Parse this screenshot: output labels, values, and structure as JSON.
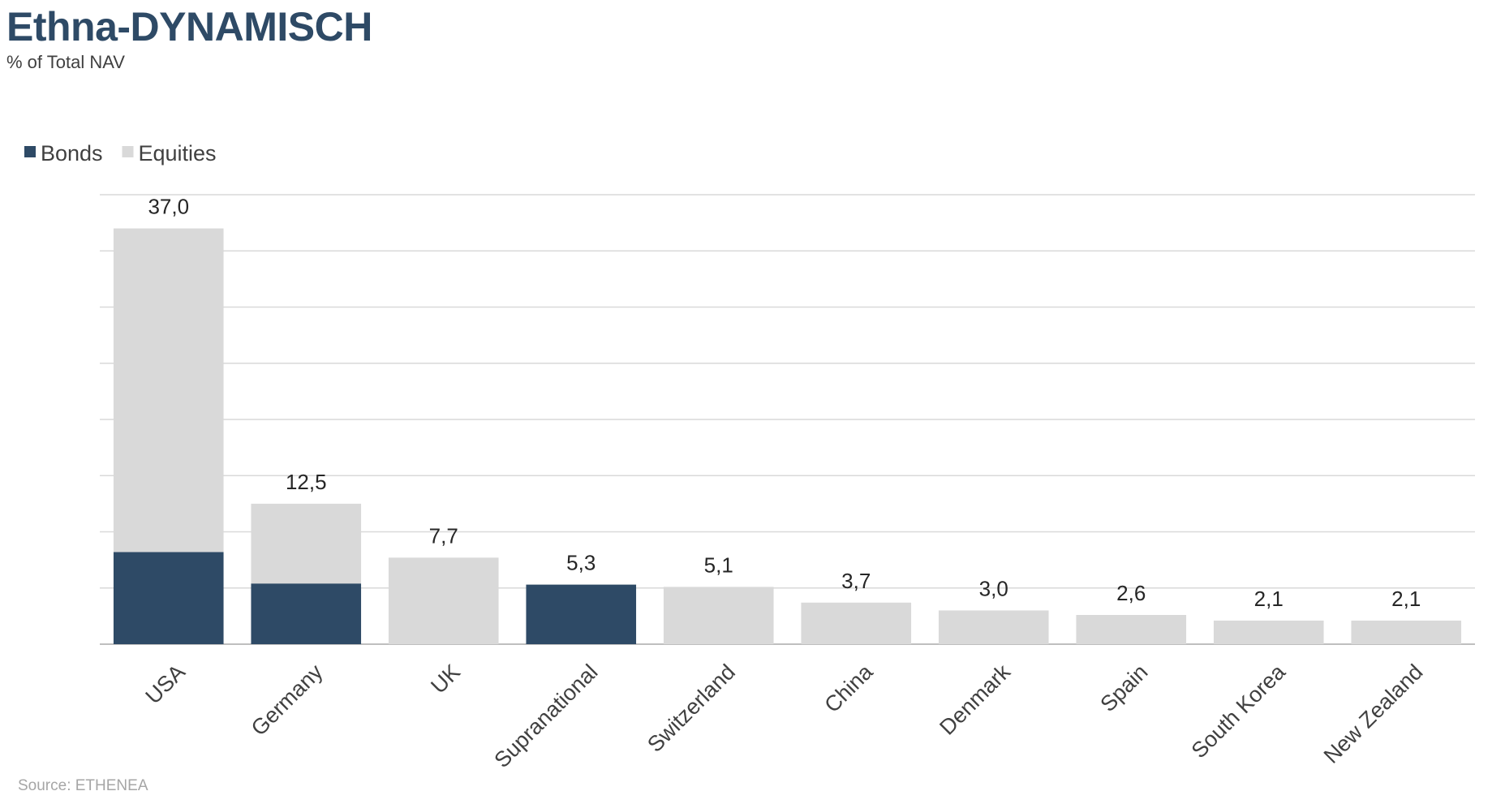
{
  "header": {
    "title": "Ethna-DYNAMISCH",
    "subtitle": "% of Total NAV"
  },
  "footer": {
    "source": "Source: ETHENEA"
  },
  "colors": {
    "bonds": "#2e4a66",
    "equities": "#d9d9d9",
    "grid": "#d9d9d9",
    "axis": "#bfbfbf"
  },
  "chart_data": {
    "type": "bar",
    "stacked": true,
    "title": "Ethna-DYNAMISCH",
    "subtitle": "% of Total NAV",
    "categories": [
      "USA",
      "Germany",
      "UK",
      "Supranational",
      "Switzerland",
      "China",
      "Denmark",
      "Spain",
      "South Korea",
      "New Zealand"
    ],
    "series": [
      {
        "name": "Bonds",
        "values": [
          8.2,
          5.4,
          0,
          5.3,
          0,
          0,
          0,
          0,
          0,
          0
        ]
      },
      {
        "name": "Equities",
        "values": [
          28.8,
          7.1,
          7.7,
          0,
          5.1,
          3.7,
          3.0,
          2.6,
          2.1,
          2.1
        ]
      }
    ],
    "total_labels": [
      "37,0",
      "12,5",
      "7,7",
      "5,3",
      "5,1",
      "3,7",
      "3,0",
      "2,6",
      "2,1",
      "2,1"
    ],
    "ylim": [
      0,
      40
    ],
    "grid": true,
    "legend_position": "top-left"
  }
}
